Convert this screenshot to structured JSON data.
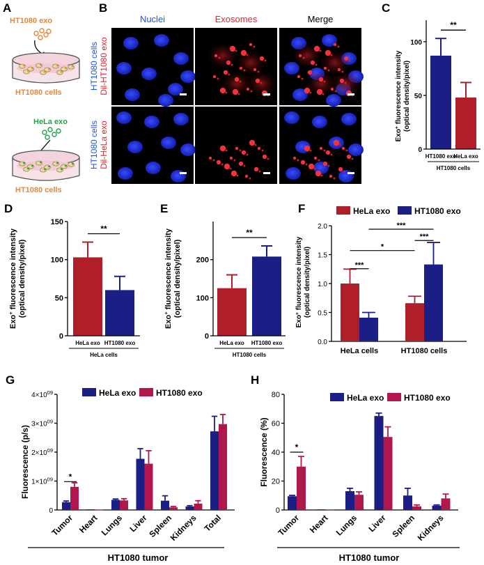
{
  "colors": {
    "red": "#B01E2A",
    "blue": "#1B1F85",
    "magenta": "#B0174E",
    "orange": "#E8873A",
    "green": "#1FA34A",
    "ink": "#000000"
  },
  "panelA": {
    "letter": "A",
    "top_label": "HT1080 exo",
    "top_dish_label": "HT1080 cells",
    "bottom_label": "HeLa exo",
    "bottom_dish_label": "HT1080 cells"
  },
  "panelB": {
    "letter": "B",
    "columns": [
      "Nuclei",
      "Exosomes",
      "Merge"
    ],
    "row1_label": [
      "HT1080 cells",
      "Dil-HT1080 exo"
    ],
    "row2_label": [
      "HT1080 cells",
      "Dil-HeLa exo"
    ]
  },
  "ylabel_exo": [
    "Exo",
    "+",
    " fluorescence intensity"
  ],
  "ylabel_exo2": "(optical density/pixel)",
  "ylabel_fluor_ps": "Fluorescence (p/s)",
  "ylabel_fluor_pct": "Fluorescence (%)",
  "legend_C": {
    "hela": "HeLa exo",
    "ht": "HT1080 exo"
  },
  "chart_data": [
    {
      "id": "C",
      "type": "bar",
      "categories": [
        "HT1080 exo",
        "HeLa exo"
      ],
      "values": [
        87,
        48
      ],
      "errors": [
        16,
        14
      ],
      "ylim": [
        0,
        120
      ],
      "yticks": [
        "0",
        "50",
        "100"
      ],
      "group_label": "HT1080 cells",
      "significance": "**"
    },
    {
      "id": "D",
      "type": "bar",
      "categories": [
        "HeLa exo",
        "HT1080 exo"
      ],
      "values": [
        103,
        60
      ],
      "errors": [
        20,
        18
      ],
      "ylim": [
        0,
        150
      ],
      "yticks": [
        "0",
        "50",
        "100",
        "150"
      ],
      "group_label": "HeLa cells",
      "significance": "**"
    },
    {
      "id": "E",
      "type": "bar",
      "categories": [
        "HeLa exo",
        "HT1080 exo"
      ],
      "values": [
        125,
        208
      ],
      "errors": [
        35,
        28
      ],
      "ylim": [
        0,
        300
      ],
      "yticks": [
        "0",
        "100",
        "200"
      ],
      "group_label": "HT1080 cells",
      "significance": "**"
    },
    {
      "id": "F",
      "type": "bar",
      "categories": [
        "HeLa cells",
        "HT1080 cells"
      ],
      "series": [
        {
          "name": "HeLa exo",
          "values": [
            1.0,
            0.66
          ],
          "errors": [
            0.25,
            0.12
          ]
        },
        {
          "name": "HT1080 exo",
          "values": [
            0.41,
            1.33
          ],
          "errors": [
            0.09,
            0.38
          ]
        }
      ],
      "ylim": [
        0,
        2.0
      ],
      "yticks": [
        "0.0",
        "0.5",
        "1.0",
        "1.5",
        "2.0"
      ],
      "significance": [
        "***",
        "***",
        "*",
        "***"
      ]
    },
    {
      "id": "G",
      "type": "bar",
      "categories": [
        "Tumor",
        "Heart",
        "Lungs",
        "Liver",
        "Spleen",
        "Kidneys",
        "Total"
      ],
      "series": [
        {
          "name": "HeLa exo",
          "values": [
            0.27,
            0.02,
            0.35,
            1.77,
            0.32,
            0.12,
            2.72
          ],
          "errors": [
            0.04,
            0.0,
            0.03,
            0.35,
            0.17,
            0.03,
            0.52
          ]
        },
        {
          "name": "HT1080 exo",
          "values": [
            0.8,
            0.01,
            0.33,
            1.6,
            0.09,
            0.22,
            2.97
          ],
          "errors": [
            0.14,
            0.0,
            0.06,
            0.45,
            0.03,
            0.1,
            0.33
          ]
        }
      ],
      "ylim": [
        0,
        4.0
      ],
      "yticks": [
        "0",
        "1×10",
        "2×10",
        "3×10",
        "4×10"
      ],
      "ytick_exp": "09",
      "xlabel": "HT1080 tumor",
      "significance": "*"
    },
    {
      "id": "H",
      "type": "bar",
      "categories": [
        "Tumor",
        "Heart",
        "Lungs",
        "Liver",
        "Spleen",
        "Kidneys"
      ],
      "series": [
        {
          "name": "HeLa exo",
          "values": [
            9.5,
            0.4,
            13.0,
            65.0,
            10.0,
            3.0
          ],
          "errors": [
            0.6,
            0.0,
            2.0,
            2.0,
            5.0,
            0.5
          ]
        },
        {
          "name": "HT1080 exo",
          "values": [
            30.0,
            0.3,
            10.5,
            50.5,
            2.5,
            8.0
          ],
          "errors": [
            7.0,
            0.0,
            2.0,
            7.0,
            1.0,
            3.0
          ]
        }
      ],
      "ylim": [
        0,
        80
      ],
      "yticks": [
        "0",
        "20",
        "40",
        "60",
        "80"
      ],
      "xlabel": "HT1080 tumor",
      "significance": "*"
    }
  ]
}
